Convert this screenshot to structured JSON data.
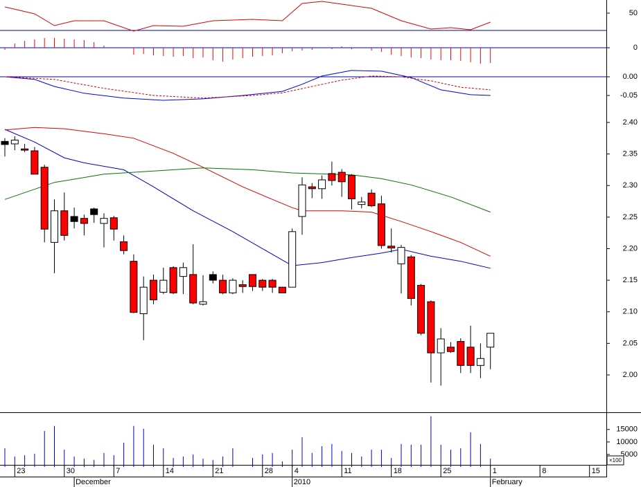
{
  "chart_data": [
    {
      "type": "oscillator",
      "ylim": [
        -26,
        69
      ],
      "yticks": [
        0,
        50
      ],
      "hlines": {
        "color": "#0000aa",
        "values": [
          25,
          0
        ]
      },
      "bars": {
        "color": "#ff0000",
        "values": [
          -3,
          6,
          10,
          12,
          14,
          14,
          13,
          12,
          11,
          8,
          3,
          0,
          0,
          -10,
          -9,
          -11,
          -12,
          -13,
          -12,
          -15,
          -14,
          -18,
          -20,
          -17,
          -15,
          -13,
          -12,
          -11,
          -8,
          -5,
          -4,
          -3,
          0,
          -2,
          2,
          -2,
          0,
          -4,
          -6,
          -10,
          -12,
          -14,
          -15,
          -17,
          -18,
          -18,
          -19,
          -21,
          -23,
          -22
        ]
      },
      "lines": [
        {
          "color": "#dd0000",
          "dash": false,
          "x": [
            0,
            3,
            5,
            7,
            10,
            13,
            15,
            18,
            21,
            25,
            28,
            30,
            32,
            35,
            37,
            40,
            43,
            45,
            47,
            49
          ],
          "values": [
            59,
            49,
            32,
            39,
            39,
            24,
            32,
            31,
            39,
            41,
            39,
            64,
            67,
            61,
            57,
            39,
            27,
            29,
            26,
            37
          ]
        }
      ]
    },
    {
      "type": "macd",
      "ylim": [
        -0.0907,
        0.0296
      ],
      "yticks": [
        {
          "value": 0,
          "label": "0.00"
        },
        {
          "value": -0.05,
          "label": "-0.05"
        }
      ],
      "hlines": {
        "color": "#0000aa",
        "values": [
          0
        ]
      },
      "lines": [
        {
          "color": "#0000dd",
          "dash": false,
          "x": [
            0,
            3,
            5,
            8,
            12,
            16,
            20,
            24,
            28,
            30,
            32,
            35,
            38,
            41,
            44,
            47,
            49
          ],
          "values": [
            0,
            -0.007,
            -0.026,
            -0.044,
            -0.057,
            -0.063,
            -0.059,
            -0.05,
            -0.039,
            -0.02,
            0.002,
            0.017,
            0.015,
            -0.002,
            -0.035,
            -0.048,
            -0.05
          ]
        },
        {
          "color": "#dd0000",
          "dash": true,
          "x": [
            0,
            5,
            10,
            15,
            20,
            25,
            28,
            31,
            34,
            37,
            40,
            43,
            46,
            49
          ],
          "values": [
            0,
            -0.007,
            -0.031,
            -0.05,
            -0.057,
            -0.05,
            -0.043,
            -0.026,
            -0.009,
            0.002,
            0,
            -0.011,
            -0.028,
            -0.035
          ]
        }
      ]
    },
    {
      "type": "candlestick",
      "ylim": [
        1.9419,
        2.4186
      ],
      "yticks": [
        {
          "value": 2,
          "label": "2.00"
        },
        2.05,
        {
          "value": 2.1,
          "label": "2.10"
        },
        2.15,
        {
          "value": 2.2,
          "label": "2.20"
        },
        2.25,
        {
          "value": 2.3,
          "label": "2.30"
        },
        2.35,
        {
          "value": 2.4,
          "label": "2.40"
        }
      ],
      "open": [
        2.37,
        2.366,
        2.358,
        2.355,
        2.329,
        2.21,
        2.26,
        2.251,
        2.248,
        2.263,
        2.24,
        2.249,
        2.211,
        2.18,
        2.097,
        2.15,
        2.131,
        2.17,
        2.156,
        2.159,
        2.112,
        2.159,
        2.15,
        2.13,
        2.143,
        2.159,
        2.15,
        2.15,
        2.139,
        2.139,
        2.251,
        2.298,
        2.295,
        2.319,
        2.321,
        2.316,
        2.27,
        2.288,
        2.271,
        2.204,
        2.176,
        2.187,
        2.142,
        2.116,
        2.035,
        2.044,
        2.053,
        2.044,
        2.015,
        2.044
      ],
      "high": [
        2.375,
        2.378,
        2.366,
        2.361,
        2.333,
        2.278,
        2.289,
        2.265,
        2.254,
        2.265,
        2.256,
        2.252,
        2.221,
        2.191,
        2.156,
        2.159,
        2.17,
        2.172,
        2.178,
        2.207,
        2.158,
        2.164,
        2.159,
        2.153,
        2.15,
        2.159,
        2.152,
        2.152,
        2.139,
        2.232,
        2.313,
        2.304,
        2.316,
        2.338,
        2.326,
        2.318,
        2.282,
        2.294,
        2.284,
        2.232,
        2.206,
        2.19,
        2.144,
        2.118,
        2.074,
        2.052,
        2.058,
        2.078,
        2.05,
        2.066
      ],
      "low": [
        2.346,
        2.356,
        2.353,
        2.318,
        2.21,
        2.161,
        2.213,
        2.232,
        2.221,
        2.241,
        2.202,
        2.213,
        2.191,
        2.098,
        2.055,
        2.112,
        2.128,
        2.128,
        2.128,
        2.112,
        2.11,
        2.145,
        2.128,
        2.128,
        2.13,
        2.133,
        2.133,
        2.13,
        2.13,
        2.139,
        2.222,
        2.28,
        2.279,
        2.3,
        2.282,
        2.262,
        2.264,
        2.266,
        2.2,
        2.194,
        2.129,
        2.11,
        2.063,
        1.988,
        1.983,
        2.035,
        2.003,
        2.003,
        1.995,
        2.009
      ],
      "close": [
        2.365,
        2.372,
        2.356,
        2.318,
        2.231,
        2.26,
        2.221,
        2.243,
        2.24,
        2.254,
        2.248,
        2.231,
        2.197,
        2.099,
        2.139,
        2.119,
        2.15,
        2.13,
        2.17,
        2.114,
        2.116,
        2.15,
        2.13,
        2.15,
        2.14,
        2.14,
        2.139,
        2.139,
        2.13,
        2.227,
        2.301,
        2.295,
        2.309,
        2.308,
        2.306,
        2.279,
        2.274,
        2.268,
        2.205,
        2.201,
        2.202,
        2.121,
        2.066,
        2.035,
        2.057,
        2.037,
        2.015,
        2.015,
        2.026,
        2.066
      ],
      "colors": [
        "#000000",
        "#ffffff",
        "#ff0000",
        "#ff0000",
        "#ff0000",
        "#ffffff",
        "#ff0000",
        "#000000",
        "#ff0000",
        "#000000",
        "#ffffff",
        "#ff0000",
        "#ff0000",
        "#ff0000",
        "#ffffff",
        "#ff0000",
        "#ffffff",
        "#ff0000",
        "#ffffff",
        "#ff0000",
        "#ffffff",
        "#000000",
        "#ff0000",
        "#ffffff",
        "#ff0000",
        "#ff0000",
        "#ff0000",
        "#ff0000",
        "#ff0000",
        "#ffffff",
        "#ffffff",
        "#ff0000",
        "#ffffff",
        "#ff0000",
        "#ff0000",
        "#ff0000",
        "#ffffff",
        "#ff0000",
        "#ff0000",
        "#ff0000",
        "#ffffff",
        "#ff0000",
        "#ff0000",
        "#ff0000",
        "#ffffff",
        "#ff0000",
        "#ff0000",
        "#ff0000",
        "#ffffff",
        "#ffffff"
      ],
      "lines": [
        {
          "color": "#0000cc",
          "dash": false,
          "x": [
            0,
            3,
            6,
            8,
            12,
            15,
            19,
            23,
            27,
            29,
            32,
            35,
            38,
            40,
            43,
            46,
            49
          ],
          "values": [
            2.389,
            2.369,
            2.344,
            2.336,
            2.325,
            2.298,
            2.26,
            2.227,
            2.191,
            2.173,
            2.178,
            2.186,
            2.193,
            2.199,
            2.188,
            2.18,
            2.169
          ]
        },
        {
          "color": "#dd0000",
          "dash": false,
          "x": [
            0,
            3,
            6,
            10,
            13,
            17,
            20,
            24,
            27,
            29,
            30,
            34,
            37,
            40,
            43,
            46,
            49
          ],
          "values": [
            2.388,
            2.392,
            2.39,
            2.382,
            2.375,
            2.351,
            2.329,
            2.298,
            2.278,
            2.265,
            2.26,
            2.26,
            2.258,
            2.243,
            2.227,
            2.21,
            2.188
          ]
        },
        {
          "color": "#007700",
          "dash": false,
          "x": [
            0,
            5,
            10,
            15,
            20,
            25,
            29,
            35,
            38,
            41,
            45,
            49
          ],
          "values": [
            2.278,
            2.305,
            2.318,
            2.323,
            2.328,
            2.325,
            2.32,
            2.317,
            2.311,
            2.301,
            2.282,
            2.258
          ]
        }
      ]
    },
    {
      "type": "volume",
      "ylim": [
        0,
        21600
      ],
      "yticks": [
        5000,
        10000,
        15000
      ],
      "unit_label": "×100",
      "color": "#0000cc",
      "values": [
        7500,
        4200,
        4700,
        5300,
        14400,
        16400,
        6900,
        4200,
        3300,
        2800,
        5600,
        4700,
        9700,
        16400,
        15300,
        8900,
        7500,
        3600,
        4200,
        5000,
        3300,
        2800,
        4200,
        7500,
        0,
        3600,
        5000,
        5600,
        2200,
        6900,
        11900,
        5600,
        8300,
        9200,
        6400,
        5600,
        4200,
        6900,
        6900,
        3600,
        9200,
        8900,
        8900,
        20300,
        8900,
        6900,
        7500,
        13900,
        9200,
        3300
      ]
    }
  ],
  "x_axis": {
    "xlim": [
      -0.49,
      60.7
    ],
    "xticks": [
      {
        "value": 1,
        "label": "23"
      },
      {
        "value": 6,
        "label": "30"
      },
      {
        "value": 11,
        "label": "7"
      },
      {
        "value": 16,
        "label": "14"
      },
      {
        "value": 21,
        "label": "21"
      },
      {
        "value": 26,
        "label": "28"
      },
      {
        "value": 29,
        "label": "4"
      },
      {
        "value": 34,
        "label": "11"
      },
      {
        "value": 39,
        "label": "18"
      },
      {
        "value": 44,
        "label": "25"
      },
      {
        "value": 49,
        "label": "1"
      },
      {
        "value": 54,
        "label": "8"
      },
      {
        "value": 59,
        "label": "15"
      }
    ],
    "period_labels": [
      {
        "value": 7,
        "label": "December"
      },
      {
        "value": 29,
        "label": "2010"
      },
      {
        "value": 49,
        "label": "February"
      }
    ]
  }
}
